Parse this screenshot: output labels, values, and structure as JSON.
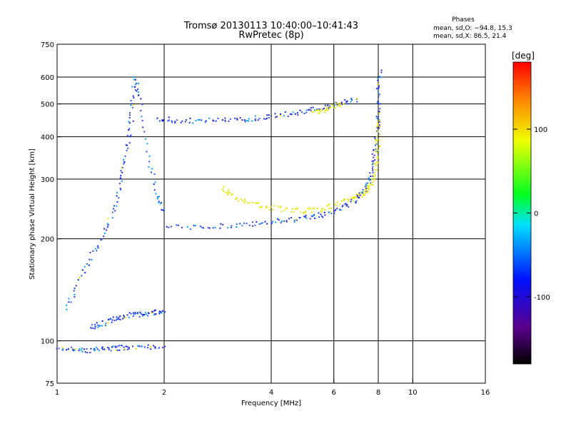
{
  "chart_data": {
    "type": "scatter",
    "title": "Tromsø 20130113 10:40:00–10:41:43",
    "subtitle": "RwPretec (8p)",
    "xlabel": "Frequency [MHz]",
    "ylabel": "Stationary phase Virtual Height [km]",
    "x_scale": "log",
    "y_scale": "log",
    "xlim": [
      1,
      16
    ],
    "ylim": [
      75,
      750
    ],
    "x_ticks": [
      "1",
      "2",
      "4",
      "6",
      "8",
      "10",
      "16"
    ],
    "y_ticks": [
      "750",
      "600",
      "500",
      "400",
      "300",
      "200",
      "100",
      "75"
    ],
    "grid": true,
    "phase_stats": {
      "heading": "Phases",
      "line_o": "mean, sd,O: −94.8, 15.3",
      "line_x": "mean, sd,X:  86.5, 21.4"
    },
    "colorbar": {
      "label": "[deg]",
      "ticks": [
        "100",
        "0",
        "-100"
      ],
      "tick_values": [
        100,
        0,
        -100
      ],
      "range": [
        -180,
        180
      ],
      "colormap": "rainbow (black → purple → blue → cyan → green → yellow → red)"
    },
    "traces": [
      {
        "name_hint": "o-mode F2 lower branch",
        "color": "#1a3cff",
        "points": [
          [
            2.0,
            218
          ],
          [
            2.5,
            218
          ],
          [
            3.0,
            220
          ],
          [
            3.5,
            222
          ],
          [
            4.0,
            225
          ],
          [
            4.5,
            228
          ],
          [
            5.0,
            232
          ],
          [
            5.5,
            236
          ],
          [
            6.0,
            243
          ],
          [
            6.5,
            252
          ],
          [
            7.0,
            265
          ],
          [
            7.3,
            280
          ],
          [
            7.5,
            300
          ],
          [
            7.7,
            330
          ],
          [
            7.8,
            370
          ],
          [
            7.9,
            420
          ],
          [
            7.95,
            480
          ],
          [
            8.0,
            560
          ],
          [
            8.05,
            630
          ]
        ]
      },
      {
        "name_hint": "x-mode F2 lower branch",
        "color": "#e6e600",
        "points": [
          [
            2.9,
            285
          ],
          [
            3.1,
            268
          ],
          [
            3.4,
            258
          ],
          [
            3.8,
            250
          ],
          [
            4.3,
            246
          ],
          [
            4.8,
            243
          ],
          [
            5.3,
            244
          ],
          [
            5.8,
            250
          ],
          [
            6.4,
            258
          ],
          [
            6.9,
            266
          ],
          [
            7.3,
            276
          ],
          [
            7.6,
            290
          ],
          [
            7.8,
            310
          ],
          [
            7.9,
            350
          ],
          [
            7.95,
            400
          ],
          [
            8.0,
            450
          ]
        ]
      },
      {
        "name_hint": "o-mode F2 second hop",
        "color": "#1a3cff",
        "points": [
          [
            1.9,
            455
          ],
          [
            2.1,
            450
          ],
          [
            2.4,
            448
          ],
          [
            2.8,
            448
          ],
          [
            3.2,
            450
          ],
          [
            3.6,
            455
          ],
          [
            4.0,
            462
          ],
          [
            4.5,
            470
          ],
          [
            5.0,
            478
          ],
          [
            5.5,
            488
          ],
          [
            6.0,
            500
          ],
          [
            6.5,
            510
          ],
          [
            7.0,
            520
          ]
        ]
      },
      {
        "name_hint": "x-mode F2 second hop",
        "color": "#e6e600",
        "points": [
          [
            5.2,
            470
          ],
          [
            5.6,
            482
          ],
          [
            6.0,
            495
          ],
          [
            6.3,
            505
          ]
        ]
      },
      {
        "name_hint": "E / F1 cluster",
        "color": "#1a3cff",
        "points": [
          [
            1.05,
            125
          ],
          [
            1.15,
            150
          ],
          [
            1.25,
            180
          ],
          [
            1.35,
            210
          ],
          [
            1.45,
            250
          ],
          [
            1.5,
            300
          ],
          [
            1.55,
            350
          ],
          [
            1.6,
            420
          ],
          [
            1.62,
            500
          ],
          [
            1.65,
            600
          ],
          [
            1.7,
            520
          ],
          [
            1.8,
            350
          ],
          [
            1.9,
            270
          ],
          [
            2.0,
            240
          ]
        ]
      },
      {
        "name_hint": "Es / low echoes",
        "color": "#1a3cff",
        "points": [
          [
            1.0,
            96
          ],
          [
            1.1,
            95
          ],
          [
            1.2,
            94
          ],
          [
            1.3,
            95
          ],
          [
            1.4,
            95
          ],
          [
            1.5,
            96
          ],
          [
            1.6,
            96
          ],
          [
            1.8,
            96
          ],
          [
            2.0,
            95
          ]
        ]
      },
      {
        "name_hint": "E-layer ~120 km",
        "color": "#1a3cff",
        "points": [
          [
            1.25,
            110
          ],
          [
            1.3,
            112
          ],
          [
            1.4,
            115
          ],
          [
            1.5,
            118
          ],
          [
            1.6,
            120
          ],
          [
            1.7,
            120
          ],
          [
            1.8,
            121
          ],
          [
            1.9,
            122
          ],
          [
            2.0,
            122
          ]
        ]
      }
    ]
  }
}
